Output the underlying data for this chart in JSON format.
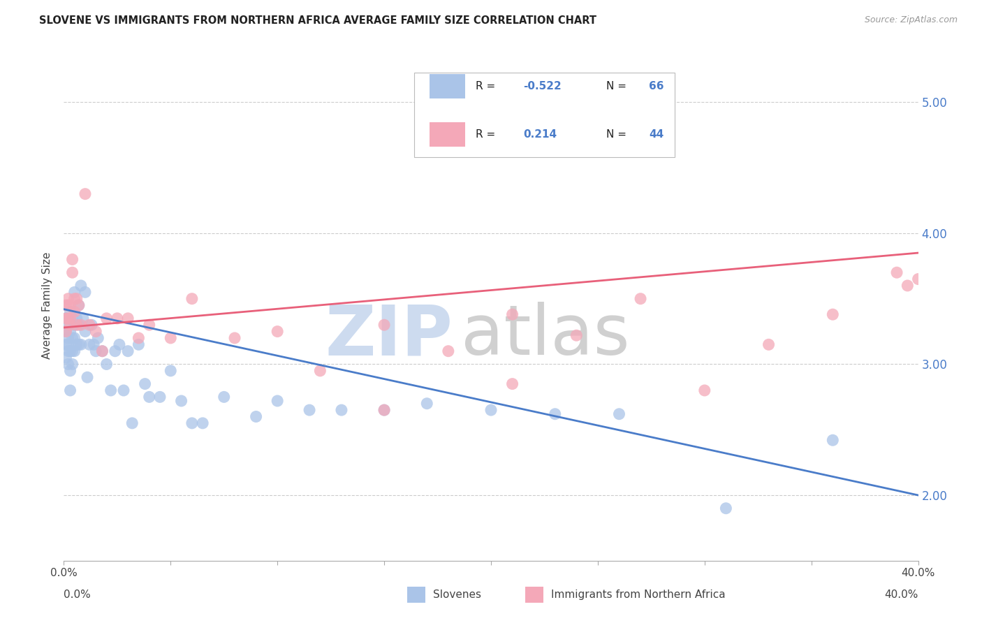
{
  "title": "SLOVENE VS IMMIGRANTS FROM NORTHERN AFRICA AVERAGE FAMILY SIZE CORRELATION CHART",
  "source": "Source: ZipAtlas.com",
  "ylabel": "Average Family Size",
  "right_yticks": [
    2.0,
    3.0,
    4.0,
    5.0
  ],
  "legend_blue_label": "Slovenes",
  "legend_pink_label": "Immigrants from Northern Africa",
  "R_blue": -0.522,
  "N_blue": 66,
  "R_pink": 0.214,
  "N_pink": 44,
  "blue_scatter_color": "#aac4e8",
  "pink_scatter_color": "#f4a8b8",
  "blue_line_color": "#4a7cc9",
  "pink_line_color": "#e8607a",
  "watermark_zip_color": "#c8d8ee",
  "watermark_atlas_color": "#c8c8c8",
  "grid_color": "#cccccc",
  "background_color": "#ffffff",
  "xlim": [
    0.0,
    0.4
  ],
  "ylim": [
    1.5,
    5.4
  ],
  "blue_x": [
    0.001,
    0.001,
    0.001,
    0.001,
    0.002,
    0.002,
    0.002,
    0.002,
    0.002,
    0.003,
    0.003,
    0.003,
    0.003,
    0.003,
    0.004,
    0.004,
    0.004,
    0.004,
    0.005,
    0.005,
    0.005,
    0.005,
    0.006,
    0.006,
    0.007,
    0.007,
    0.007,
    0.008,
    0.008,
    0.009,
    0.01,
    0.01,
    0.011,
    0.012,
    0.013,
    0.014,
    0.015,
    0.016,
    0.018,
    0.02,
    0.022,
    0.024,
    0.026,
    0.028,
    0.03,
    0.032,
    0.035,
    0.038,
    0.04,
    0.045,
    0.05,
    0.055,
    0.06,
    0.065,
    0.075,
    0.09,
    0.1,
    0.115,
    0.13,
    0.15,
    0.17,
    0.2,
    0.23,
    0.26,
    0.31,
    0.36
  ],
  "blue_y": [
    3.35,
    3.25,
    3.15,
    3.05,
    3.3,
    3.2,
    3.15,
    3.1,
    3.0,
    3.4,
    3.25,
    3.1,
    2.95,
    2.8,
    3.35,
    3.2,
    3.1,
    3.0,
    3.55,
    3.3,
    3.2,
    3.1,
    3.35,
    3.15,
    3.45,
    3.3,
    3.15,
    3.6,
    3.15,
    3.35,
    3.55,
    3.25,
    2.9,
    3.15,
    3.3,
    3.15,
    3.1,
    3.2,
    3.1,
    3.0,
    2.8,
    3.1,
    3.15,
    2.8,
    3.1,
    2.55,
    3.15,
    2.85,
    2.75,
    2.75,
    2.95,
    2.72,
    2.55,
    2.55,
    2.75,
    2.6,
    2.72,
    2.65,
    2.65,
    2.65,
    2.7,
    2.65,
    2.62,
    2.62,
    1.9,
    2.42
  ],
  "pink_x": [
    0.001,
    0.001,
    0.001,
    0.002,
    0.002,
    0.002,
    0.003,
    0.003,
    0.003,
    0.004,
    0.004,
    0.005,
    0.005,
    0.006,
    0.006,
    0.007,
    0.008,
    0.01,
    0.012,
    0.015,
    0.018,
    0.02,
    0.025,
    0.03,
    0.035,
    0.04,
    0.05,
    0.06,
    0.08,
    0.1,
    0.12,
    0.15,
    0.18,
    0.21,
    0.24,
    0.27,
    0.3,
    0.33,
    0.36,
    0.39,
    0.395,
    0.4,
    0.21,
    0.15
  ],
  "pink_y": [
    3.45,
    3.35,
    3.25,
    3.5,
    3.45,
    3.35,
    3.45,
    3.35,
    3.3,
    3.8,
    3.7,
    3.5,
    3.4,
    3.5,
    3.3,
    3.45,
    3.3,
    4.3,
    3.3,
    3.25,
    3.1,
    3.35,
    3.35,
    3.35,
    3.2,
    3.3,
    3.2,
    3.5,
    3.2,
    3.25,
    2.95,
    3.3,
    3.1,
    3.38,
    3.22,
    3.5,
    2.8,
    3.15,
    3.38,
    3.7,
    3.6,
    3.65,
    2.85,
    2.65
  ],
  "trend_blue_x0": 0.0,
  "trend_blue_y0": 3.42,
  "trend_blue_x1": 0.4,
  "trend_blue_y1": 2.0,
  "trend_pink_x0": 0.0,
  "trend_pink_y0": 3.28,
  "trend_pink_x1": 0.4,
  "trend_pink_y1": 3.85
}
